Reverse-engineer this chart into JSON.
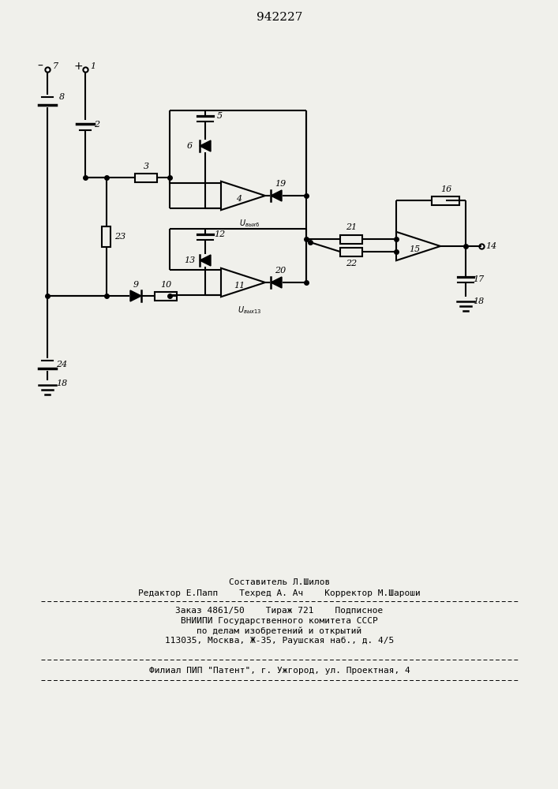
{
  "title": "942227",
  "bg_color": "#f0f0eb",
  "lw": 1.5,
  "fig_width": 7.07,
  "fig_height": 10.0,
  "footer": {
    "line1": "Составитель Л.Шилов",
    "line2": "Редактор Е.Папп    Техред А. Ач    Корректор М.Шароши",
    "line3": "Заказ 4861/50    Тираж 721    Подписное",
    "line4": "ВНИИПИ Государственного комитета СССР",
    "line5": "по делам изобретений и открытий",
    "line6": "113035, Москва, Ж-35, Раушская наб., д. 4/5",
    "line7": "Филиал ПИП \"Патент\", г. Ужгород, ул. Проектная, 4"
  }
}
